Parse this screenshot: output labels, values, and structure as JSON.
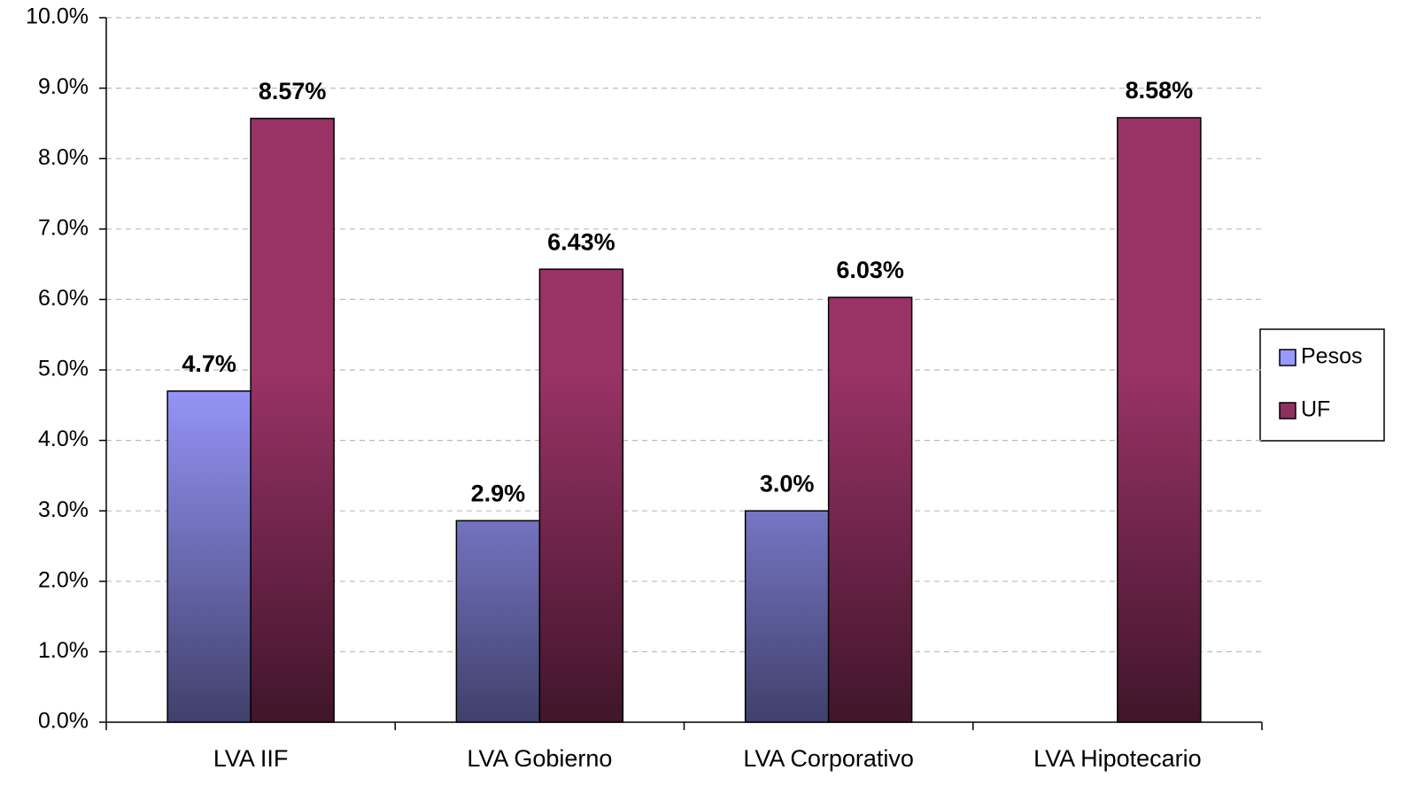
{
  "chart_data": {
    "type": "bar",
    "categories": [
      "LVA IIF",
      "LVA Gobierno",
      "LVA Corporativo",
      "LVA Hipotecario"
    ],
    "series": [
      {
        "name": "Pesos",
        "color": "#9999ff",
        "values": [
          4.7,
          2.86,
          3.0,
          null
        ],
        "value_labels": [
          "4.7%",
          "2.9%",
          "3.0%",
          null
        ]
      },
      {
        "name": "UF",
        "color": "#993366",
        "values": [
          8.57,
          6.43,
          6.03,
          8.58
        ],
        "value_labels": [
          "8.57%",
          "6.43%",
          "6.03%",
          "8.58%"
        ]
      }
    ],
    "ylim": [
      0,
      10
    ],
    "yticks": [
      {
        "value": 0,
        "label": "0.0%"
      },
      {
        "value": 1,
        "label": "1.0%"
      },
      {
        "value": 2,
        "label": "2.0%"
      },
      {
        "value": 3,
        "label": "3.0%"
      },
      {
        "value": 4,
        "label": "4.0%"
      },
      {
        "value": 5,
        "label": "5.0%"
      },
      {
        "value": 6,
        "label": "6.0%"
      },
      {
        "value": 7,
        "label": "7.0%"
      },
      {
        "value": 8,
        "label": "8.0%"
      },
      {
        "value": 9,
        "label": "9.0%"
      },
      {
        "value": 10,
        "label": "10.0%"
      }
    ],
    "grid": true,
    "legend": "right"
  }
}
